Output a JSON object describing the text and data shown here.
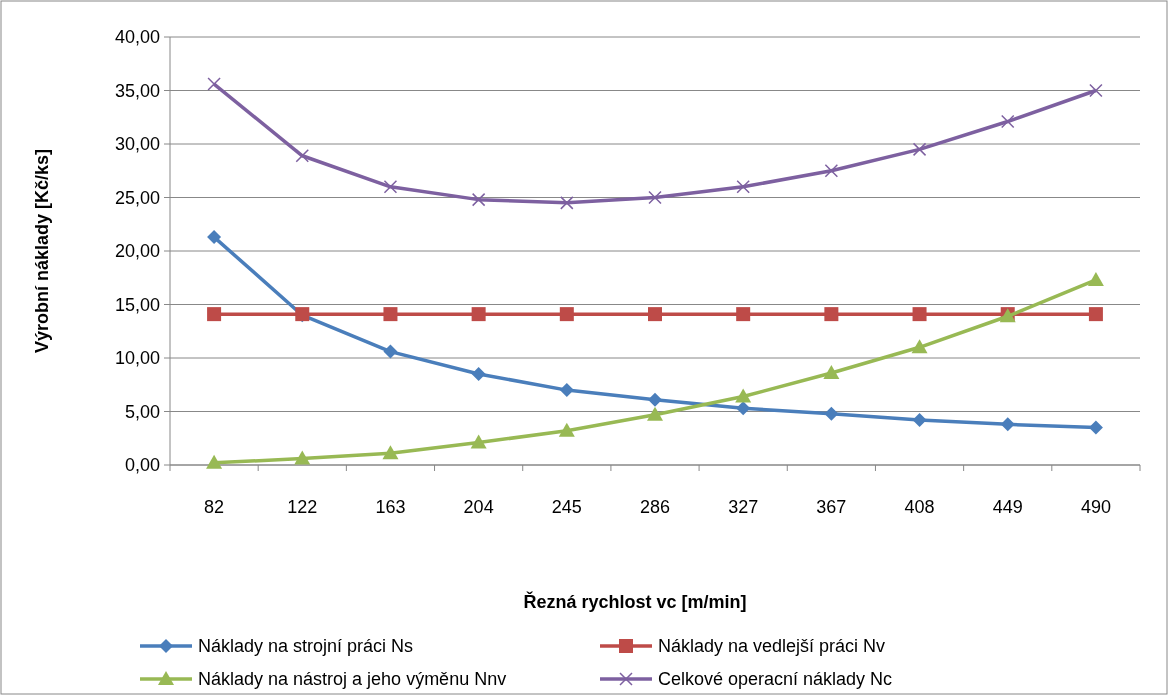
{
  "chart_data": {
    "type": "line",
    "xlabel": "Řezná rychlost vc [m/min]",
    "ylabel": "Výrobní náklady [Kč/ks]",
    "categories": [
      "82",
      "122",
      "163",
      "204",
      "245",
      "286",
      "327",
      "367",
      "408",
      "449",
      "490"
    ],
    "ylim": [
      0,
      40
    ],
    "yticks": [
      {
        "value": 0,
        "label": "0,00"
      },
      {
        "value": 5,
        "label": "5,00"
      },
      {
        "value": 10,
        "label": "10,00"
      },
      {
        "value": 15,
        "label": "15,00"
      },
      {
        "value": 20,
        "label": "20,00"
      },
      {
        "value": 25,
        "label": "25,00"
      },
      {
        "value": 30,
        "label": "30,00"
      },
      {
        "value": 35,
        "label": "35,00"
      },
      {
        "value": 40,
        "label": "40,00"
      }
    ],
    "grid": "y",
    "legend": "bottom",
    "series": [
      {
        "name": "Náklady na strojní práci Ns",
        "color": "#4a7ebb",
        "marker": "diamond",
        "values": [
          21.3,
          14.0,
          10.6,
          8.5,
          7.0,
          6.1,
          5.3,
          4.8,
          4.2,
          3.8,
          3.5
        ]
      },
      {
        "name": "Náklady na vedlejší práci Nv",
        "color": "#be4b48",
        "marker": "square",
        "values": [
          14.1,
          14.1,
          14.1,
          14.1,
          14.1,
          14.1,
          14.1,
          14.1,
          14.1,
          14.1,
          14.1
        ]
      },
      {
        "name": "Náklady na nástroj a jeho výměnu Nnv",
        "color": "#98b954",
        "marker": "triangle",
        "values": [
          0.2,
          0.6,
          1.1,
          2.1,
          3.2,
          4.7,
          6.4,
          8.6,
          11.0,
          13.9,
          17.3
        ]
      },
      {
        "name": "Celkové operacní náklady Nc",
        "color": "#7d60a0",
        "marker": "cross",
        "values": [
          35.6,
          28.9,
          26.0,
          24.8,
          24.5,
          25.0,
          26.0,
          27.5,
          29.5,
          32.1,
          35.0
        ]
      }
    ]
  }
}
